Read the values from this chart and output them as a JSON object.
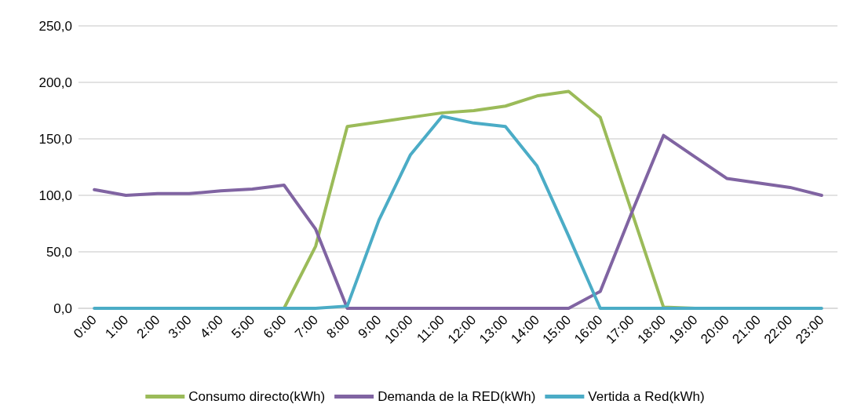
{
  "chart_data": {
    "type": "line",
    "categories": [
      "0:00",
      "1:00",
      "2:00",
      "3:00",
      "4:00",
      "5:00",
      "6:00",
      "7:00",
      "8:00",
      "9:00",
      "10:00",
      "11:00",
      "12:00",
      "13:00",
      "14:00",
      "15:00",
      "16:00",
      "17:00",
      "18:00",
      "19:00",
      "20:00",
      "21:00",
      "22:00",
      "23:00"
    ],
    "series": [
      {
        "name": "Consumo directo(kWh)",
        "color": "#9bbb59",
        "values": [
          null,
          null,
          null,
          null,
          null,
          0,
          0,
          55,
          161,
          165,
          169,
          173,
          175,
          179,
          188,
          192,
          169,
          85,
          1,
          0,
          0,
          null,
          null,
          null
        ]
      },
      {
        "name": "Demanda de la RED(kWh)",
        "color": "#8064a2",
        "values": [
          105,
          100,
          101.5,
          101.5,
          104,
          105.5,
          109,
          70,
          0,
          0,
          0,
          0,
          0,
          0,
          0,
          0,
          15,
          85,
          153,
          134,
          115,
          111,
          107,
          100
        ]
      },
      {
        "name": "Vertida a Red(kWh)",
        "color": "#4bacc6",
        "values": [
          0,
          0,
          0,
          0,
          0,
          0,
          0,
          0,
          2,
          78,
          136,
          170,
          164,
          161,
          126,
          64,
          0,
          0,
          0,
          0,
          0,
          0,
          0,
          0
        ]
      }
    ],
    "ylim": [
      0,
      250
    ],
    "yticks": [
      {
        "value": 0,
        "label": "0,0"
      },
      {
        "value": 50,
        "label": "50,0"
      },
      {
        "value": 100,
        "label": "100,0"
      },
      {
        "value": 150,
        "label": "150,0"
      },
      {
        "value": 200,
        "label": "200,0"
      },
      {
        "value": 250,
        "label": "250,0"
      }
    ],
    "grid": "y",
    "legend": "bottom",
    "marker": "none",
    "line_style": "solid"
  }
}
